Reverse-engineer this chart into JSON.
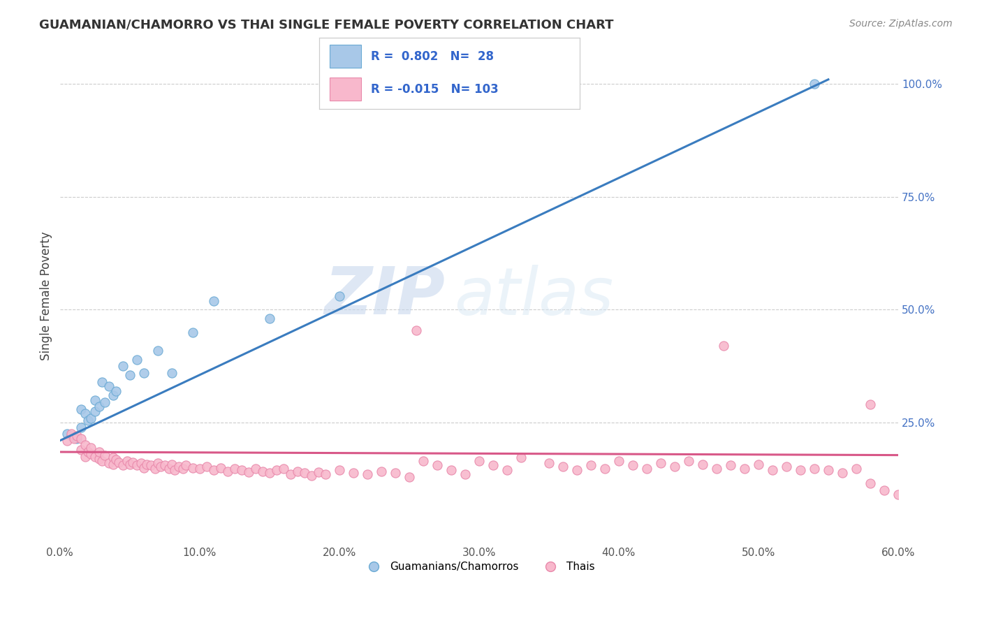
{
  "title": "GUAMANIAN/CHAMORRO VS THAI SINGLE FEMALE POVERTY CORRELATION CHART",
  "source": "Source: ZipAtlas.com",
  "xlim": [
    0.0,
    0.6
  ],
  "ylim": [
    -0.02,
    1.08
  ],
  "ylabel": "Single Female Poverty",
  "r_blue": 0.802,
  "n_blue": 28,
  "r_pink": -0.015,
  "n_pink": 103,
  "blue_color": "#a8c8e8",
  "blue_edge_color": "#6aaad4",
  "pink_color": "#f8b8cc",
  "pink_edge_color": "#e888aa",
  "blue_line_color": "#3a7cbf",
  "pink_line_color": "#d85888",
  "legend_label_blue": "Guamanians/Chamorros",
  "legend_label_pink": "Thais",
  "watermark_zip": "ZIP",
  "watermark_atlas": "atlas",
  "ytick_vals": [
    0.25,
    0.5,
    0.75,
    1.0
  ],
  "xtick_vals": [
    0.0,
    0.1,
    0.2,
    0.3,
    0.4,
    0.5,
    0.6
  ],
  "blue_line_x0": 0.0,
  "blue_line_y0": 0.21,
  "blue_line_x1": 0.55,
  "blue_line_y1": 1.01,
  "pink_line_x0": 0.0,
  "pink_line_y0": 0.185,
  "pink_line_x1": 0.6,
  "pink_line_y1": 0.178,
  "blue_pts_x": [
    0.005,
    0.008,
    0.01,
    0.012,
    0.015,
    0.015,
    0.018,
    0.02,
    0.022,
    0.025,
    0.025,
    0.028,
    0.03,
    0.032,
    0.035,
    0.038,
    0.04,
    0.045,
    0.05,
    0.055,
    0.06,
    0.07,
    0.08,
    0.095,
    0.11,
    0.15,
    0.2,
    0.54
  ],
  "blue_pts_y": [
    0.225,
    0.22,
    0.218,
    0.215,
    0.28,
    0.24,
    0.27,
    0.255,
    0.26,
    0.3,
    0.275,
    0.285,
    0.34,
    0.295,
    0.33,
    0.31,
    0.32,
    0.375,
    0.355,
    0.39,
    0.36,
    0.41,
    0.36,
    0.45,
    0.52,
    0.48,
    0.53,
    1.0
  ],
  "pink_pts_x": [
    0.005,
    0.008,
    0.01,
    0.012,
    0.015,
    0.015,
    0.018,
    0.018,
    0.02,
    0.022,
    0.022,
    0.025,
    0.028,
    0.028,
    0.03,
    0.032,
    0.035,
    0.038,
    0.038,
    0.04,
    0.042,
    0.045,
    0.048,
    0.05,
    0.052,
    0.055,
    0.058,
    0.06,
    0.062,
    0.065,
    0.068,
    0.07,
    0.072,
    0.075,
    0.078,
    0.08,
    0.082,
    0.085,
    0.088,
    0.09,
    0.095,
    0.1,
    0.105,
    0.11,
    0.115,
    0.12,
    0.125,
    0.13,
    0.135,
    0.14,
    0.145,
    0.15,
    0.155,
    0.16,
    0.165,
    0.17,
    0.175,
    0.18,
    0.185,
    0.19,
    0.2,
    0.21,
    0.22,
    0.23,
    0.24,
    0.25,
    0.26,
    0.27,
    0.28,
    0.29,
    0.3,
    0.31,
    0.32,
    0.33,
    0.35,
    0.36,
    0.37,
    0.38,
    0.39,
    0.4,
    0.41,
    0.42,
    0.43,
    0.44,
    0.45,
    0.46,
    0.47,
    0.48,
    0.49,
    0.5,
    0.51,
    0.52,
    0.53,
    0.54,
    0.55,
    0.56,
    0.57,
    0.58,
    0.59,
    0.6,
    0.255,
    0.475,
    0.58
  ],
  "pink_pts_y": [
    0.21,
    0.225,
    0.215,
    0.22,
    0.19,
    0.215,
    0.175,
    0.2,
    0.185,
    0.18,
    0.195,
    0.175,
    0.17,
    0.185,
    0.165,
    0.178,
    0.16,
    0.172,
    0.158,
    0.168,
    0.162,
    0.155,
    0.165,
    0.158,
    0.162,
    0.155,
    0.16,
    0.15,
    0.158,
    0.155,
    0.148,
    0.16,
    0.152,
    0.155,
    0.148,
    0.158,
    0.145,
    0.152,
    0.148,
    0.155,
    0.15,
    0.148,
    0.152,
    0.145,
    0.15,
    0.142,
    0.148,
    0.145,
    0.14,
    0.148,
    0.142,
    0.138,
    0.145,
    0.148,
    0.135,
    0.142,
    0.138,
    0.132,
    0.14,
    0.135,
    0.145,
    0.138,
    0.135,
    0.142,
    0.138,
    0.13,
    0.165,
    0.155,
    0.145,
    0.135,
    0.165,
    0.155,
    0.145,
    0.172,
    0.16,
    0.152,
    0.145,
    0.155,
    0.148,
    0.165,
    0.155,
    0.148,
    0.16,
    0.152,
    0.165,
    0.158,
    0.148,
    0.155,
    0.148,
    0.158,
    0.145,
    0.152,
    0.145,
    0.148,
    0.145,
    0.138,
    0.148,
    0.115,
    0.1,
    0.09,
    0.455,
    0.42,
    0.29
  ]
}
